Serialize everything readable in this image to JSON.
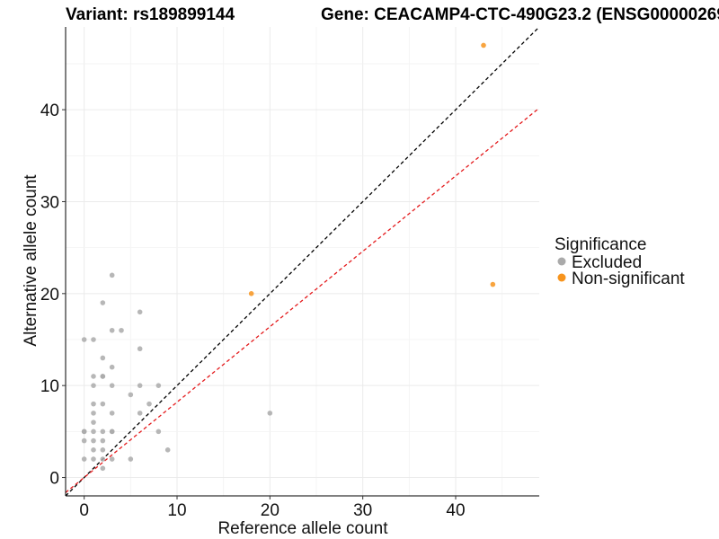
{
  "chart_data": {
    "type": "scatter",
    "title_left": "Variant: rs189899144",
    "title_right": "Gene: CEACAMP4-CTC-490G23.2 (ENSG00000269",
    "xlabel": "Reference allele count",
    "ylabel": "Alternative allele count",
    "xlim": [
      -2,
      49
    ],
    "ylim": [
      -2,
      49
    ],
    "xticks": [
      0,
      10,
      20,
      30,
      40
    ],
    "yticks": [
      0,
      10,
      20,
      30,
      40
    ],
    "grid": true,
    "legend": {
      "title": "Significance",
      "position": "right",
      "entries": [
        {
          "label": "Excluded",
          "color": "#aaaaaa"
        },
        {
          "label": "Non-significant",
          "color": "#f7941d"
        }
      ]
    },
    "reference_lines": [
      {
        "slope": 1.0,
        "intercept": 0,
        "color": "#000000",
        "style": "dashed"
      },
      {
        "slope": 0.82,
        "intercept": 0,
        "color": "#e41a1c",
        "style": "dashed"
      }
    ],
    "series": [
      {
        "name": "Excluded",
        "color": "#aaaaaa",
        "points": [
          [
            0,
            15
          ],
          [
            0,
            5
          ],
          [
            0,
            5
          ],
          [
            0,
            4
          ],
          [
            0,
            2
          ],
          [
            1,
            15
          ],
          [
            1,
            11
          ],
          [
            1,
            10
          ],
          [
            1,
            8
          ],
          [
            1,
            7
          ],
          [
            1,
            6
          ],
          [
            1,
            5
          ],
          [
            1,
            4
          ],
          [
            1,
            3
          ],
          [
            1,
            2
          ],
          [
            2,
            19
          ],
          [
            2,
            13
          ],
          [
            2,
            11
          ],
          [
            2,
            11
          ],
          [
            2,
            8
          ],
          [
            2,
            5
          ],
          [
            2,
            4
          ],
          [
            2,
            3
          ],
          [
            2,
            2
          ],
          [
            2,
            1
          ],
          [
            3,
            22
          ],
          [
            3,
            16
          ],
          [
            3,
            12
          ],
          [
            3,
            10
          ],
          [
            3,
            7
          ],
          [
            3,
            5
          ],
          [
            3,
            5
          ],
          [
            3,
            2
          ],
          [
            4,
            16
          ],
          [
            5,
            9
          ],
          [
            5,
            2
          ],
          [
            6,
            18
          ],
          [
            6,
            14
          ],
          [
            6,
            10
          ],
          [
            6,
            7
          ],
          [
            7,
            8
          ],
          [
            8,
            10
          ],
          [
            8,
            5
          ],
          [
            9,
            3
          ],
          [
            20,
            7
          ]
        ]
      },
      {
        "name": "Non-significant",
        "color": "#f7941d",
        "points": [
          [
            18,
            20
          ],
          [
            43,
            47
          ],
          [
            44,
            21
          ]
        ]
      }
    ]
  }
}
